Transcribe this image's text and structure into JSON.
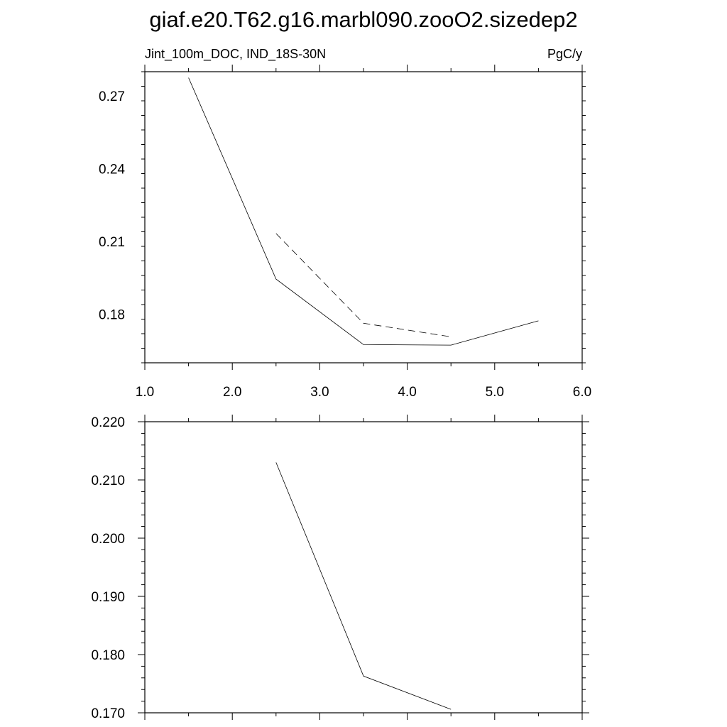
{
  "title": "giaf.e20.T62.g16.marbl090.zooO2.sizedep2",
  "chart_data": [
    {
      "type": "line",
      "subtitle_left": "Jint_100m_DOC, IND_18S-30N",
      "subtitle_right": "PgC/y",
      "xlim": [
        1.0,
        6.0
      ],
      "ylim": [
        0.16,
        0.28
      ],
      "xticks": [
        "1.0",
        "2.0",
        "3.0",
        "4.0",
        "5.0",
        "6.0"
      ],
      "yticks": [
        0.18,
        0.21,
        0.24,
        0.27
      ],
      "ytick_labels": [
        "0.18",
        "0.21",
        "0.24",
        "0.27"
      ],
      "series": [
        {
          "style": "solid",
          "x": [
            1.5,
            2.5,
            3.5,
            4.5,
            5.5
          ],
          "y": [
            0.2775,
            0.1945,
            0.1675,
            0.1673,
            0.1773
          ]
        },
        {
          "style": "dashed",
          "x": [
            2.5,
            3.5,
            4.5
          ],
          "y": [
            0.2133,
            0.1763,
            0.1707
          ]
        }
      ]
    },
    {
      "type": "line",
      "xlim": [
        1.0,
        6.0
      ],
      "ylim": [
        0.17,
        0.22
      ],
      "yticks": [
        0.17,
        0.18,
        0.19,
        0.2,
        0.21,
        0.22
      ],
      "ytick_labels": [
        "0.170",
        "0.180",
        "0.190",
        "0.200",
        "0.210",
        "0.220"
      ],
      "series": [
        {
          "style": "solid",
          "x": [
            2.5,
            3.5,
            4.5
          ],
          "y": [
            0.213,
            0.1763,
            0.1706
          ]
        }
      ]
    }
  ]
}
